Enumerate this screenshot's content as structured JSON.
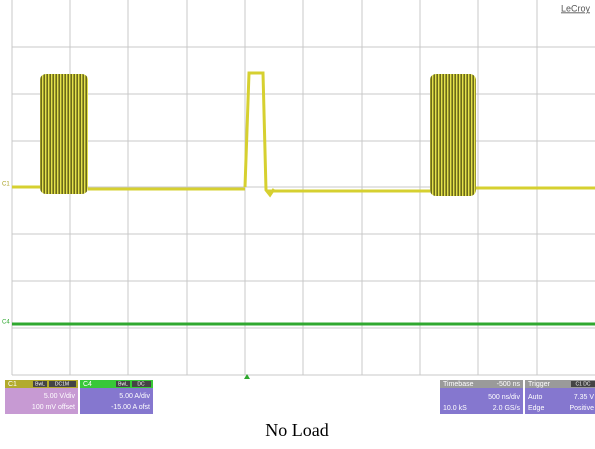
{
  "screen": {
    "brand": "LeCroy",
    "c1_marker": "C1",
    "c4_marker": "C4"
  },
  "channels": [
    {
      "name": "C1",
      "badges": [
        "BwL",
        "DC1M"
      ],
      "scale": "5.00 V/div",
      "offset": "100 mV offset"
    },
    {
      "name": "C4",
      "badges": [
        "BwL",
        "DC"
      ],
      "scale": "5.00 A/div",
      "offset": "-15.00 A ofst"
    }
  ],
  "timebase": {
    "label": "Timebase",
    "delay": "-500 ns",
    "scale": "500 ns/div",
    "samples": "10.0 kS",
    "rate": "2.0 GS/s"
  },
  "trigger": {
    "label": "Trigger",
    "source": "C1 DC",
    "mode": "Auto",
    "level": "7.35 V",
    "type": "Edge",
    "slope": "Positive"
  },
  "caption": "No Load"
}
